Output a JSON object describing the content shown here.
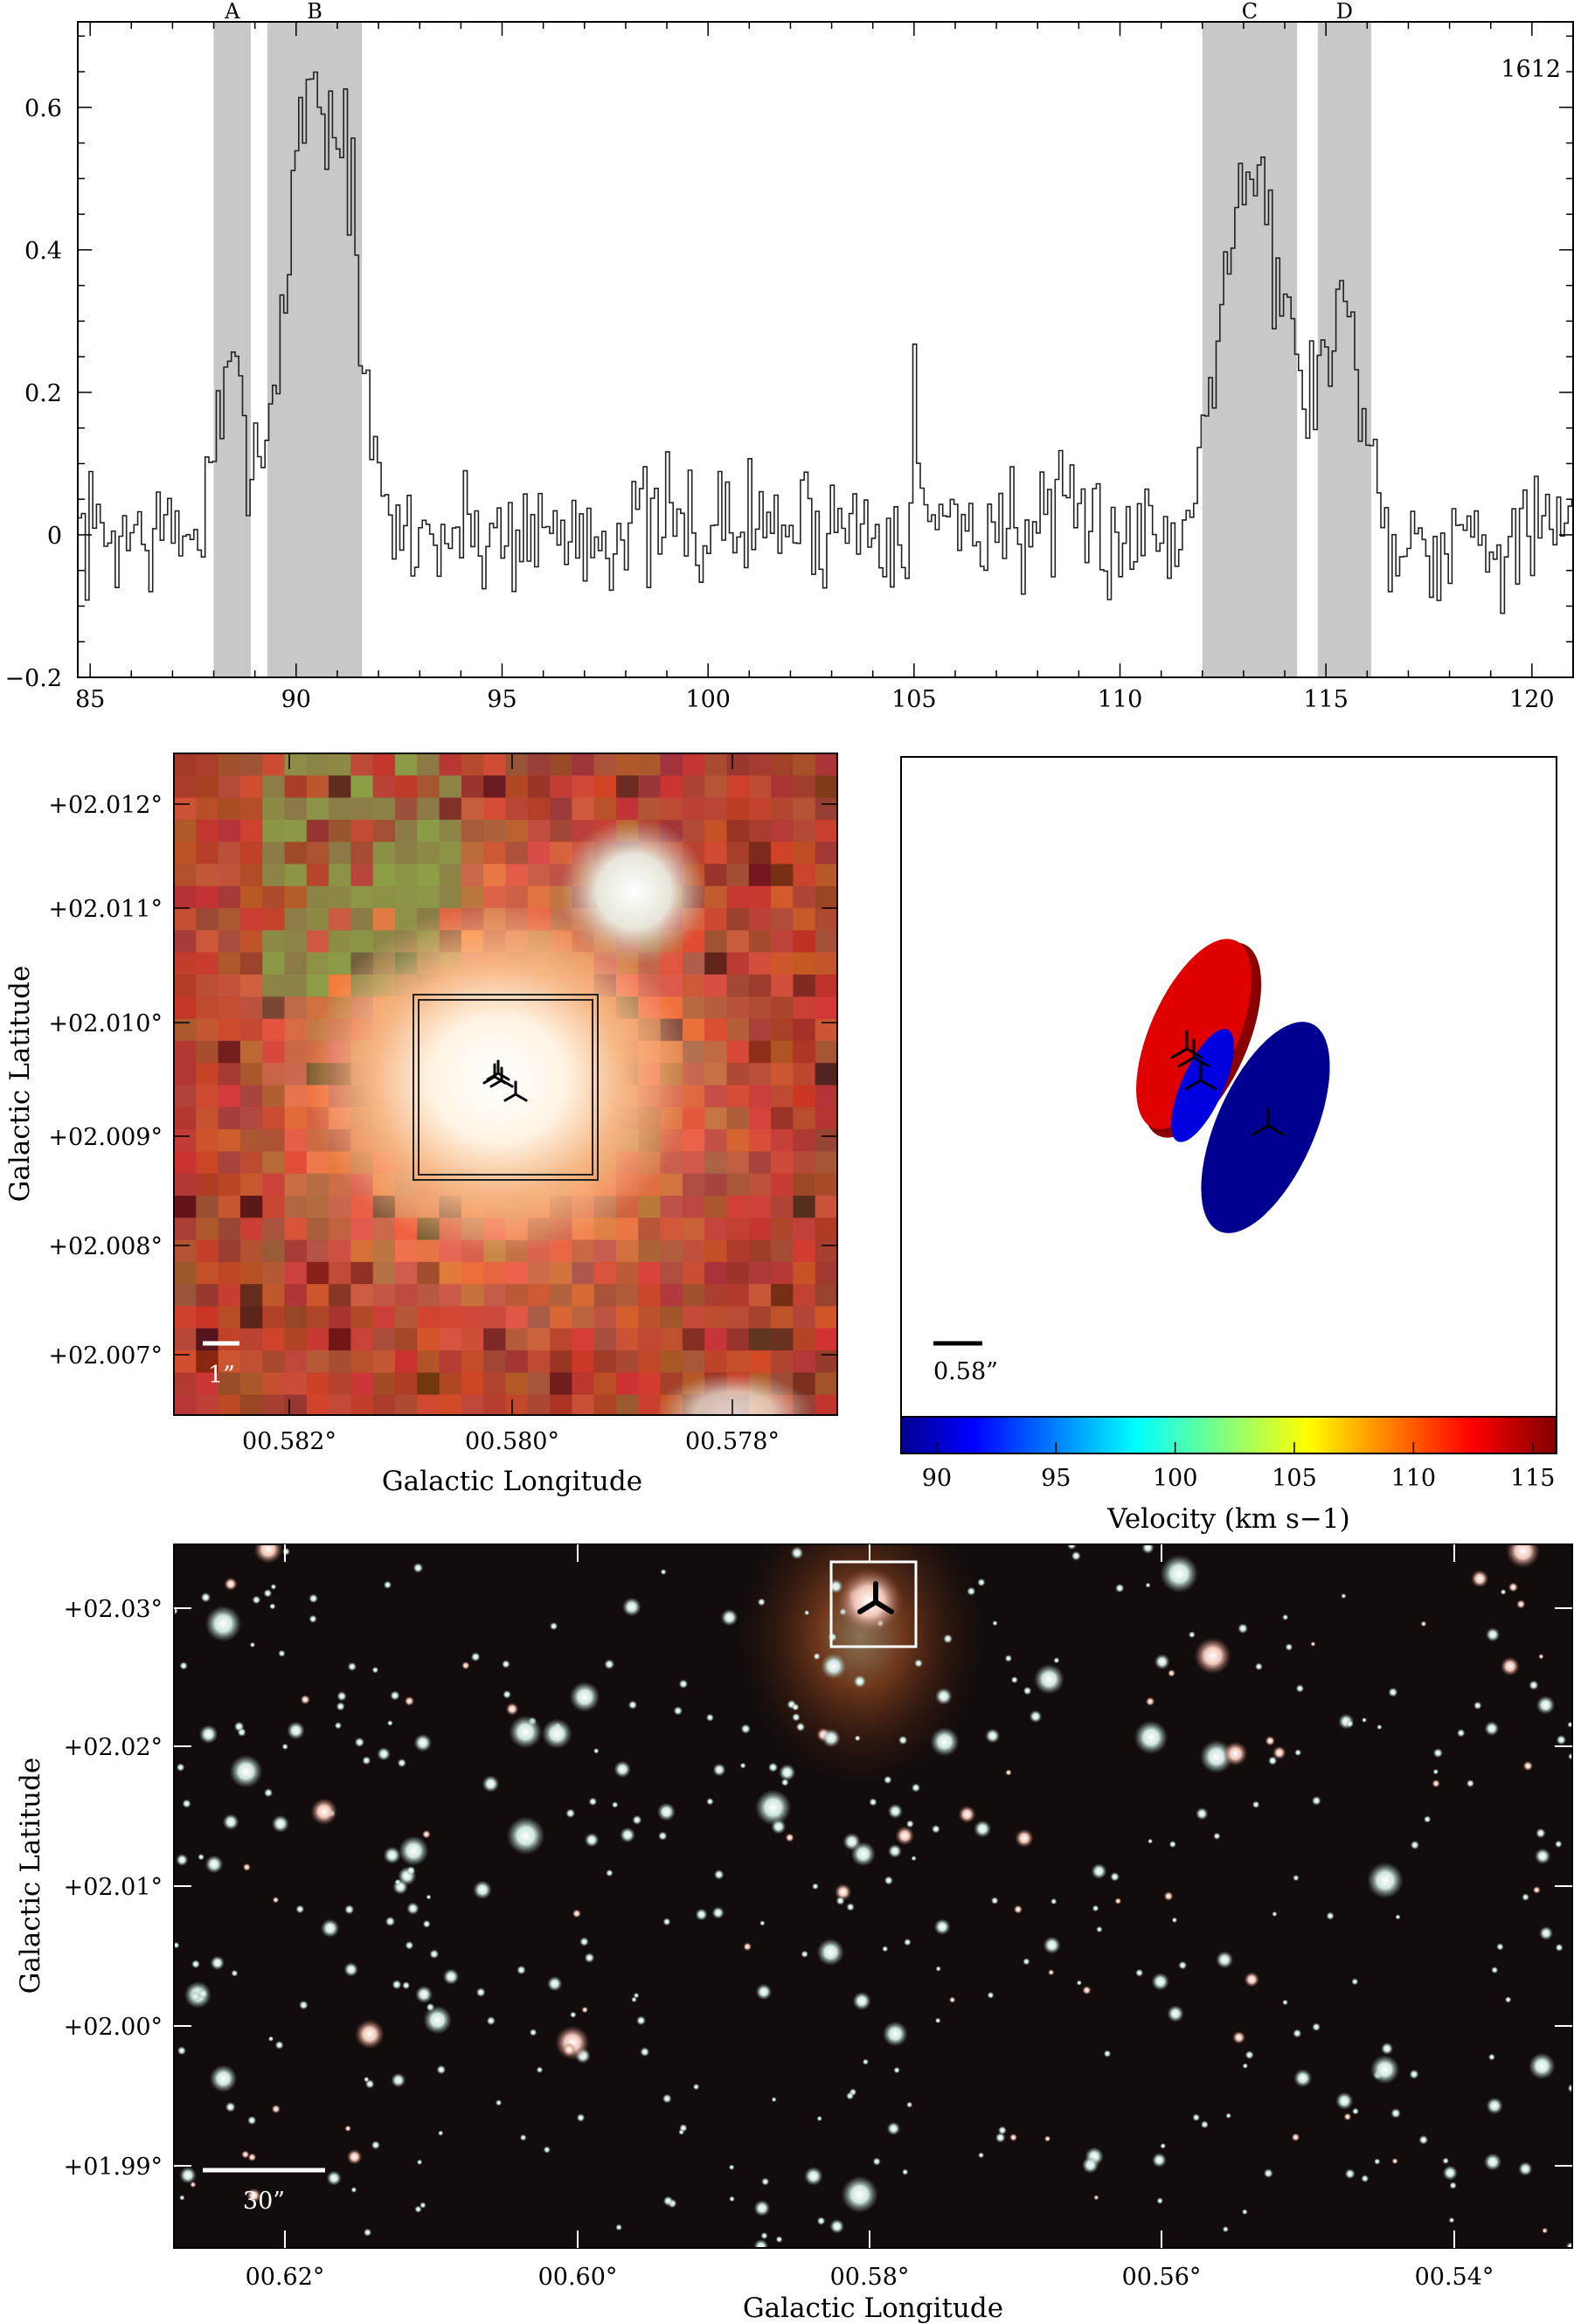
{
  "chart_data": [
    {
      "type": "line",
      "panel": "spectrum",
      "corner_label": "1612",
      "xlim": [
        84.7,
        121.0
      ],
      "ylim": [
        -0.2,
        0.72
      ],
      "x_ticks": [
        85,
        90,
        95,
        100,
        105,
        110,
        115,
        120
      ],
      "y_ticks": [
        -0.2,
        0,
        0.2,
        0.4,
        0.6
      ],
      "y_tick_labels": [
        "−0.2",
        "0",
        "0.2",
        "0.4",
        "0.6"
      ],
      "regions": [
        {
          "label": "A",
          "x0": 88.0,
          "x1": 88.9
        },
        {
          "label": "B",
          "x0": 89.3,
          "x1": 91.6
        },
        {
          "label": "C",
          "x0": 112.0,
          "x1": 114.3
        },
        {
          "label": "D",
          "x0": 114.8,
          "x1": 116.1
        }
      ],
      "series": [
        {
          "x_start": 84.7,
          "x_step": 0.0909,
          "anchors": [
            [
              84.7,
              0.0
            ],
            [
              87.6,
              0.0
            ],
            [
              88.0,
              0.12
            ],
            [
              88.4,
              0.22
            ],
            [
              88.9,
              0.12
            ],
            [
              89.3,
              0.15
            ],
            [
              89.7,
              0.35
            ],
            [
              90.0,
              0.55
            ],
            [
              90.3,
              0.66
            ],
            [
              90.7,
              0.58
            ],
            [
              91.0,
              0.56
            ],
            [
              91.3,
              0.52
            ],
            [
              91.6,
              0.2
            ],
            [
              92.0,
              0.05
            ],
            [
              92.4,
              0.0
            ],
            [
              104.8,
              0.02
            ],
            [
              105.0,
              0.2
            ],
            [
              105.2,
              0.02
            ],
            [
              111.6,
              0.0
            ],
            [
              112.0,
              0.18
            ],
            [
              112.4,
              0.35
            ],
            [
              112.8,
              0.48
            ],
            [
              113.2,
              0.52
            ],
            [
              113.5,
              0.48
            ],
            [
              113.8,
              0.34
            ],
            [
              114.1,
              0.28
            ],
            [
              114.4,
              0.2
            ],
            [
              114.8,
              0.23
            ],
            [
              115.2,
              0.3
            ],
            [
              115.6,
              0.3
            ],
            [
              116.0,
              0.14
            ],
            [
              116.4,
              0.0
            ],
            [
              121.0,
              0.0
            ]
          ],
          "noise": 0.045
        }
      ]
    },
    {
      "type": "heatmap",
      "panel": "zoomed-image",
      "xlabel": "Galactic Longitude",
      "ylabel": "Galactic Latitude",
      "x_ticks": [
        "00.582°",
        "00.580°",
        "00.578°"
      ],
      "y_ticks": [
        "+02.012°",
        "+02.011°",
        "+02.010°",
        "+02.009°",
        "+02.008°",
        "+02.007°"
      ],
      "scale_bar_label": "1”",
      "colors": {
        "background": "#8a3a26",
        "core": "#fdf6ea",
        "halo": "#f08a5a",
        "neighbour": "#f4f2ea"
      }
    },
    {
      "type": "scatter",
      "panel": "velocity-ellipses",
      "colorbar_label": "Velocity (km s−1)",
      "colorbar_ticks": [
        90,
        95,
        100,
        105,
        110,
        115
      ],
      "colorbar_range": [
        88.5,
        116
      ],
      "scale_bar_label": "0.58”",
      "components": [
        {
          "label": "A",
          "velocity": 88.4,
          "color": "#00008c"
        },
        {
          "label": "B",
          "velocity": 90.5,
          "color": "#0000d8"
        },
        {
          "label": "C",
          "velocity": 113.2,
          "color": "#d80000"
        },
        {
          "label": "D",
          "velocity": 115.4,
          "color": "#8a0000"
        }
      ]
    },
    {
      "type": "heatmap",
      "panel": "wide-field-image",
      "xlabel": "Galactic Longitude",
      "ylabel": "Galactic Latitude",
      "x_ticks": [
        "00.62°",
        "00.60°",
        "00.58°",
        "00.56°",
        "00.54°"
      ],
      "y_ticks": [
        "+02.03°",
        "+02.02°",
        "+02.01°",
        "+02.00°",
        "+01.99°"
      ],
      "scale_bar_label": "30”",
      "colors": {
        "background": "#120d0c",
        "star": "#e6f2ee",
        "target": "#f2a060"
      }
    }
  ]
}
